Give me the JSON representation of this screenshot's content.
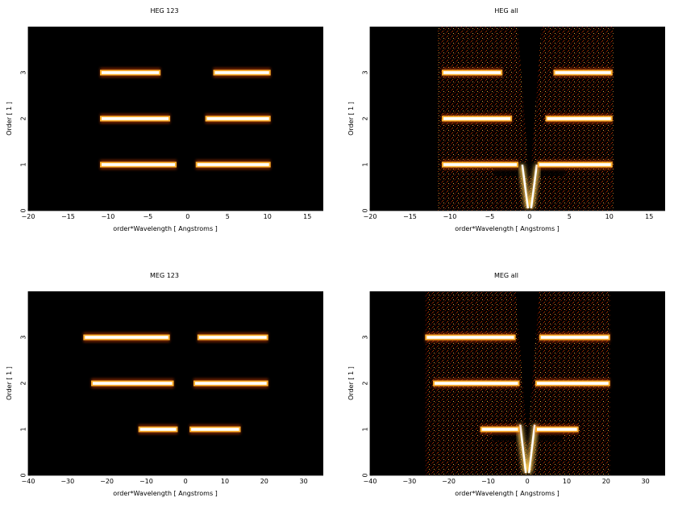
{
  "chart_data": [
    {
      "type": "heatmap",
      "title": "HEG 123",
      "xlabel": "order*Wavelength [ Angstroms ]",
      "ylabel": "Order [ 1 ]",
      "xlim": [
        -20,
        17
      ],
      "ylim": [
        0,
        4
      ],
      "xticks": [
        -20,
        -15,
        -10,
        -5,
        0,
        5,
        10,
        15
      ],
      "xtick_labels": [
        "−20",
        "−15",
        "−10",
        "−5",
        "0",
        "5",
        "10",
        "15"
      ],
      "yticks": [
        0,
        1,
        2,
        3
      ],
      "ytick_labels": [
        "0",
        "1",
        "2",
        "3"
      ],
      "colormap": [
        "#000000",
        "#6b0a00",
        "#c83c00",
        "#ffb02e",
        "#ffffff"
      ],
      "background": "#000000",
      "grid": false,
      "bands": [
        {
          "order": 1,
          "x_start": -11,
          "x_end": -1.4,
          "intensity": 0.95
        },
        {
          "order": 1,
          "x_start": 1.0,
          "x_end": 10.4,
          "intensity": 0.95
        },
        {
          "order": 2,
          "x_start": -11,
          "x_end": -2.2,
          "intensity": 0.9
        },
        {
          "order": 2,
          "x_start": 2.2,
          "x_end": 10.4,
          "intensity": 0.9
        },
        {
          "order": 3,
          "x_start": -11,
          "x_end": -3.4,
          "intensity": 0.85
        },
        {
          "order": 3,
          "x_start": 3.2,
          "x_end": 10.4,
          "intensity": 0.85
        }
      ]
    },
    {
      "type": "heatmap",
      "title": "HEG all",
      "xlabel": "order*Wavelength [ Angstroms ]",
      "ylabel": "Order [ 1 ]",
      "xlim": [
        -20,
        17
      ],
      "ylim": [
        0,
        4
      ],
      "xticks": [
        -20,
        -15,
        -10,
        -5,
        0,
        5,
        10,
        15
      ],
      "xtick_labels": [
        "−20",
        "−15",
        "−10",
        "−5",
        "0",
        "5",
        "10",
        "15"
      ],
      "yticks": [
        0,
        1,
        2,
        3
      ],
      "ytick_labels": [
        "0",
        "1",
        "2",
        "3"
      ],
      "colormap": [
        "#000000",
        "#6b0a00",
        "#c83c00",
        "#ffb02e",
        "#ffffff"
      ],
      "background": "#000000",
      "grid": false,
      "background_region": {
        "x_start": -11.5,
        "x_end": 10.5,
        "y_start": 0,
        "y_end": 4,
        "intensity": 0.22
      },
      "zero_order_v": {
        "x": 0,
        "y_min": 0.05,
        "y_max": 1.0,
        "intensity": 1.0
      },
      "bands": [
        {
          "order": 1,
          "x_start": -11,
          "x_end": -1.4,
          "intensity": 0.95
        },
        {
          "order": 1,
          "x_start": 1.0,
          "x_end": 10.4,
          "intensity": 0.95
        },
        {
          "order": 2,
          "x_start": -11,
          "x_end": -2.2,
          "intensity": 0.9
        },
        {
          "order": 2,
          "x_start": 2.0,
          "x_end": 10.4,
          "intensity": 0.9
        },
        {
          "order": 3,
          "x_start": -11,
          "x_end": -3.4,
          "intensity": 0.85
        },
        {
          "order": 3,
          "x_start": 3.0,
          "x_end": 10.4,
          "intensity": 0.85
        }
      ]
    },
    {
      "type": "heatmap",
      "title": "MEG 123",
      "xlabel": "order*Wavelength [ Angstroms ]",
      "ylabel": "Order [ 1 ]",
      "xlim": [
        -40,
        35
      ],
      "ylim": [
        0,
        4
      ],
      "xticks": [
        -40,
        -30,
        -20,
        -10,
        0,
        10,
        20,
        30
      ],
      "xtick_labels": [
        "−40",
        "−30",
        "−20",
        "−10",
        "0",
        "10",
        "20",
        "30"
      ],
      "yticks": [
        0,
        1,
        2,
        3
      ],
      "ytick_labels": [
        "0",
        "1",
        "2",
        "3"
      ],
      "colormap": [
        "#000000",
        "#6b0a00",
        "#c83c00",
        "#ffb02e",
        "#ffffff"
      ],
      "background": "#000000",
      "grid": false,
      "bands": [
        {
          "order": 1,
          "x_start": -12,
          "x_end": -2,
          "intensity": 0.95
        },
        {
          "order": 1,
          "x_start": 1,
          "x_end": 14,
          "intensity": 0.95
        },
        {
          "order": 2,
          "x_start": -24,
          "x_end": -3,
          "intensity": 0.9
        },
        {
          "order": 2,
          "x_start": 2,
          "x_end": 21,
          "intensity": 0.9
        },
        {
          "order": 3,
          "x_start": -26,
          "x_end": -4,
          "intensity": 0.85
        },
        {
          "order": 3,
          "x_start": 3,
          "x_end": 21,
          "intensity": 0.85
        }
      ]
    },
    {
      "type": "heatmap",
      "title": "MEG all",
      "xlabel": "order*Wavelength [ Angstroms ]",
      "ylabel": "Order [ 1 ]",
      "xlim": [
        -40,
        35
      ],
      "ylim": [
        0,
        4
      ],
      "xticks": [
        -40,
        -30,
        -20,
        -10,
        0,
        10,
        20,
        30
      ],
      "xtick_labels": [
        "−40",
        "−30",
        "−20",
        "−10",
        "0",
        "10",
        "20",
        "30"
      ],
      "yticks": [
        0,
        1,
        2,
        3
      ],
      "ytick_labels": [
        "0",
        "1",
        "2",
        "3"
      ],
      "colormap": [
        "#000000",
        "#6b0a00",
        "#c83c00",
        "#ffb02e",
        "#ffffff"
      ],
      "background": "#000000",
      "grid": false,
      "background_region": {
        "x_start": -26,
        "x_end": 21,
        "y_start": 0,
        "y_end": 4,
        "intensity": 0.22
      },
      "zero_order_v": {
        "x": 0,
        "y_min": 0.05,
        "y_max": 1.1,
        "intensity": 1.0
      },
      "bands": [
        {
          "order": 1,
          "x_start": -12,
          "x_end": -2,
          "intensity": 0.95
        },
        {
          "order": 1,
          "x_start": 2,
          "x_end": 13,
          "intensity": 0.95
        },
        {
          "order": 2,
          "x_start": -24,
          "x_end": -2,
          "intensity": 0.9
        },
        {
          "order": 2,
          "x_start": 2,
          "x_end": 21,
          "intensity": 0.9
        },
        {
          "order": 3,
          "x_start": -26,
          "x_end": -3,
          "intensity": 0.85
        },
        {
          "order": 3,
          "x_start": 3,
          "x_end": 21,
          "intensity": 0.85
        }
      ]
    }
  ]
}
